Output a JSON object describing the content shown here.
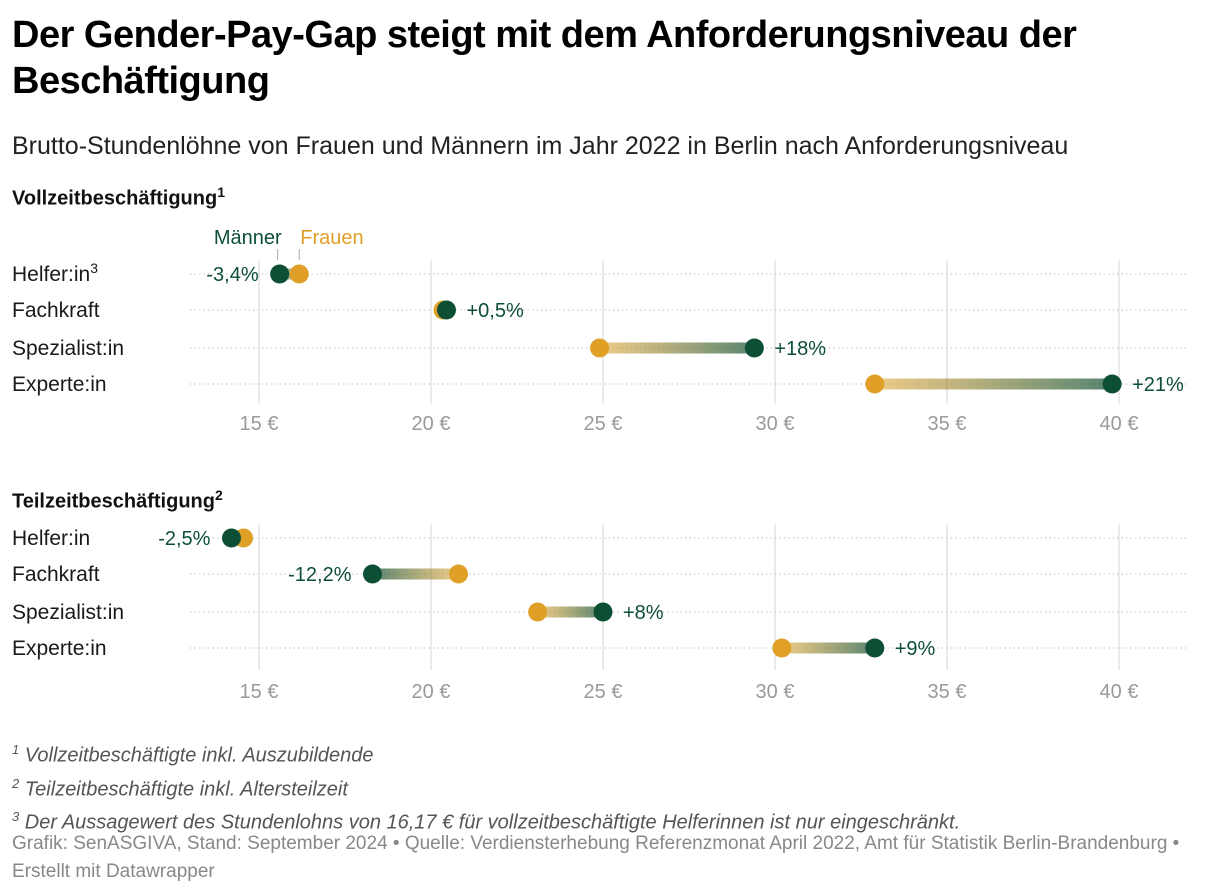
{
  "title": "Der Gender-Pay-Gap steigt mit dem Anforderungsniveau der Beschäftigung",
  "subtitle": "Brutto-Stundenlöhne von Frauen und Männern im Jahr 2022 in Berlin nach Anforderungsniveau",
  "colors": {
    "maenner": "#0d4f35",
    "frauen": "#e0a028",
    "grid": "#dcdcdc",
    "tick": "#9a9a9a"
  },
  "legend": {
    "maenner": "Männer",
    "frauen": "Frauen"
  },
  "chart_data": [
    {
      "type": "dot-range",
      "title": "Vollzeitbeschäftigung",
      "title_sup": "1",
      "xlim": [
        13,
        42
      ],
      "xticks": [
        15,
        20,
        25,
        30,
        35,
        40
      ],
      "xtick_labels": [
        "15 €",
        "20 €",
        "25 €",
        "30 €",
        "35 €",
        "40 €"
      ],
      "categories": [
        "Helfer:in",
        "Fachkraft",
        "Spezialist:in",
        "Experte:in"
      ],
      "category_sups": [
        "3",
        "",
        "",
        ""
      ],
      "series": [
        {
          "name": "Männer",
          "values": [
            15.6,
            20.45,
            29.4,
            39.8
          ]
        },
        {
          "name": "Frauen",
          "values": [
            16.17,
            20.35,
            24.9,
            32.9
          ]
        }
      ],
      "gap_labels": [
        "-3,4%",
        "+0,5%",
        "+18%",
        "+21%"
      ]
    },
    {
      "type": "dot-range",
      "title": "Teilzeitbeschäftigung",
      "title_sup": "2",
      "xlim": [
        13,
        42
      ],
      "xticks": [
        15,
        20,
        25,
        30,
        35,
        40
      ],
      "xtick_labels": [
        "15 €",
        "20 €",
        "25 €",
        "30 €",
        "35 €",
        "40 €"
      ],
      "categories": [
        "Helfer:in",
        "Fachkraft",
        "Spezialist:in",
        "Experte:in"
      ],
      "category_sups": [
        "",
        "",
        "",
        ""
      ],
      "series": [
        {
          "name": "Männer",
          "values": [
            14.2,
            18.3,
            25.0,
            32.9
          ]
        },
        {
          "name": "Frauen",
          "values": [
            14.55,
            20.8,
            23.1,
            30.2
          ]
        }
      ],
      "gap_labels": [
        "-2,5%",
        "-12,2%",
        "+8%",
        "+9%"
      ]
    }
  ],
  "footnotes": [
    {
      "num": "1",
      "text": "Vollzeitbeschäftigte inkl. Auszubildende"
    },
    {
      "num": "2",
      "text": "Teilzeitbeschäftigte inkl. Altersteilzeit"
    },
    {
      "num": "3",
      "text": "Der Aussagewert des Stundenlohns von 16,17 € für vollzeitbeschäftigte Helferinnen ist nur eingeschränkt."
    }
  ],
  "credits": "Grafik: SenASGIVA, Stand: September 2024 • Quelle: Verdiensterhebung Referenzmonat April 2022, Amt für Statistik Berlin-Brandenburg • Erstellt mit Datawrapper"
}
